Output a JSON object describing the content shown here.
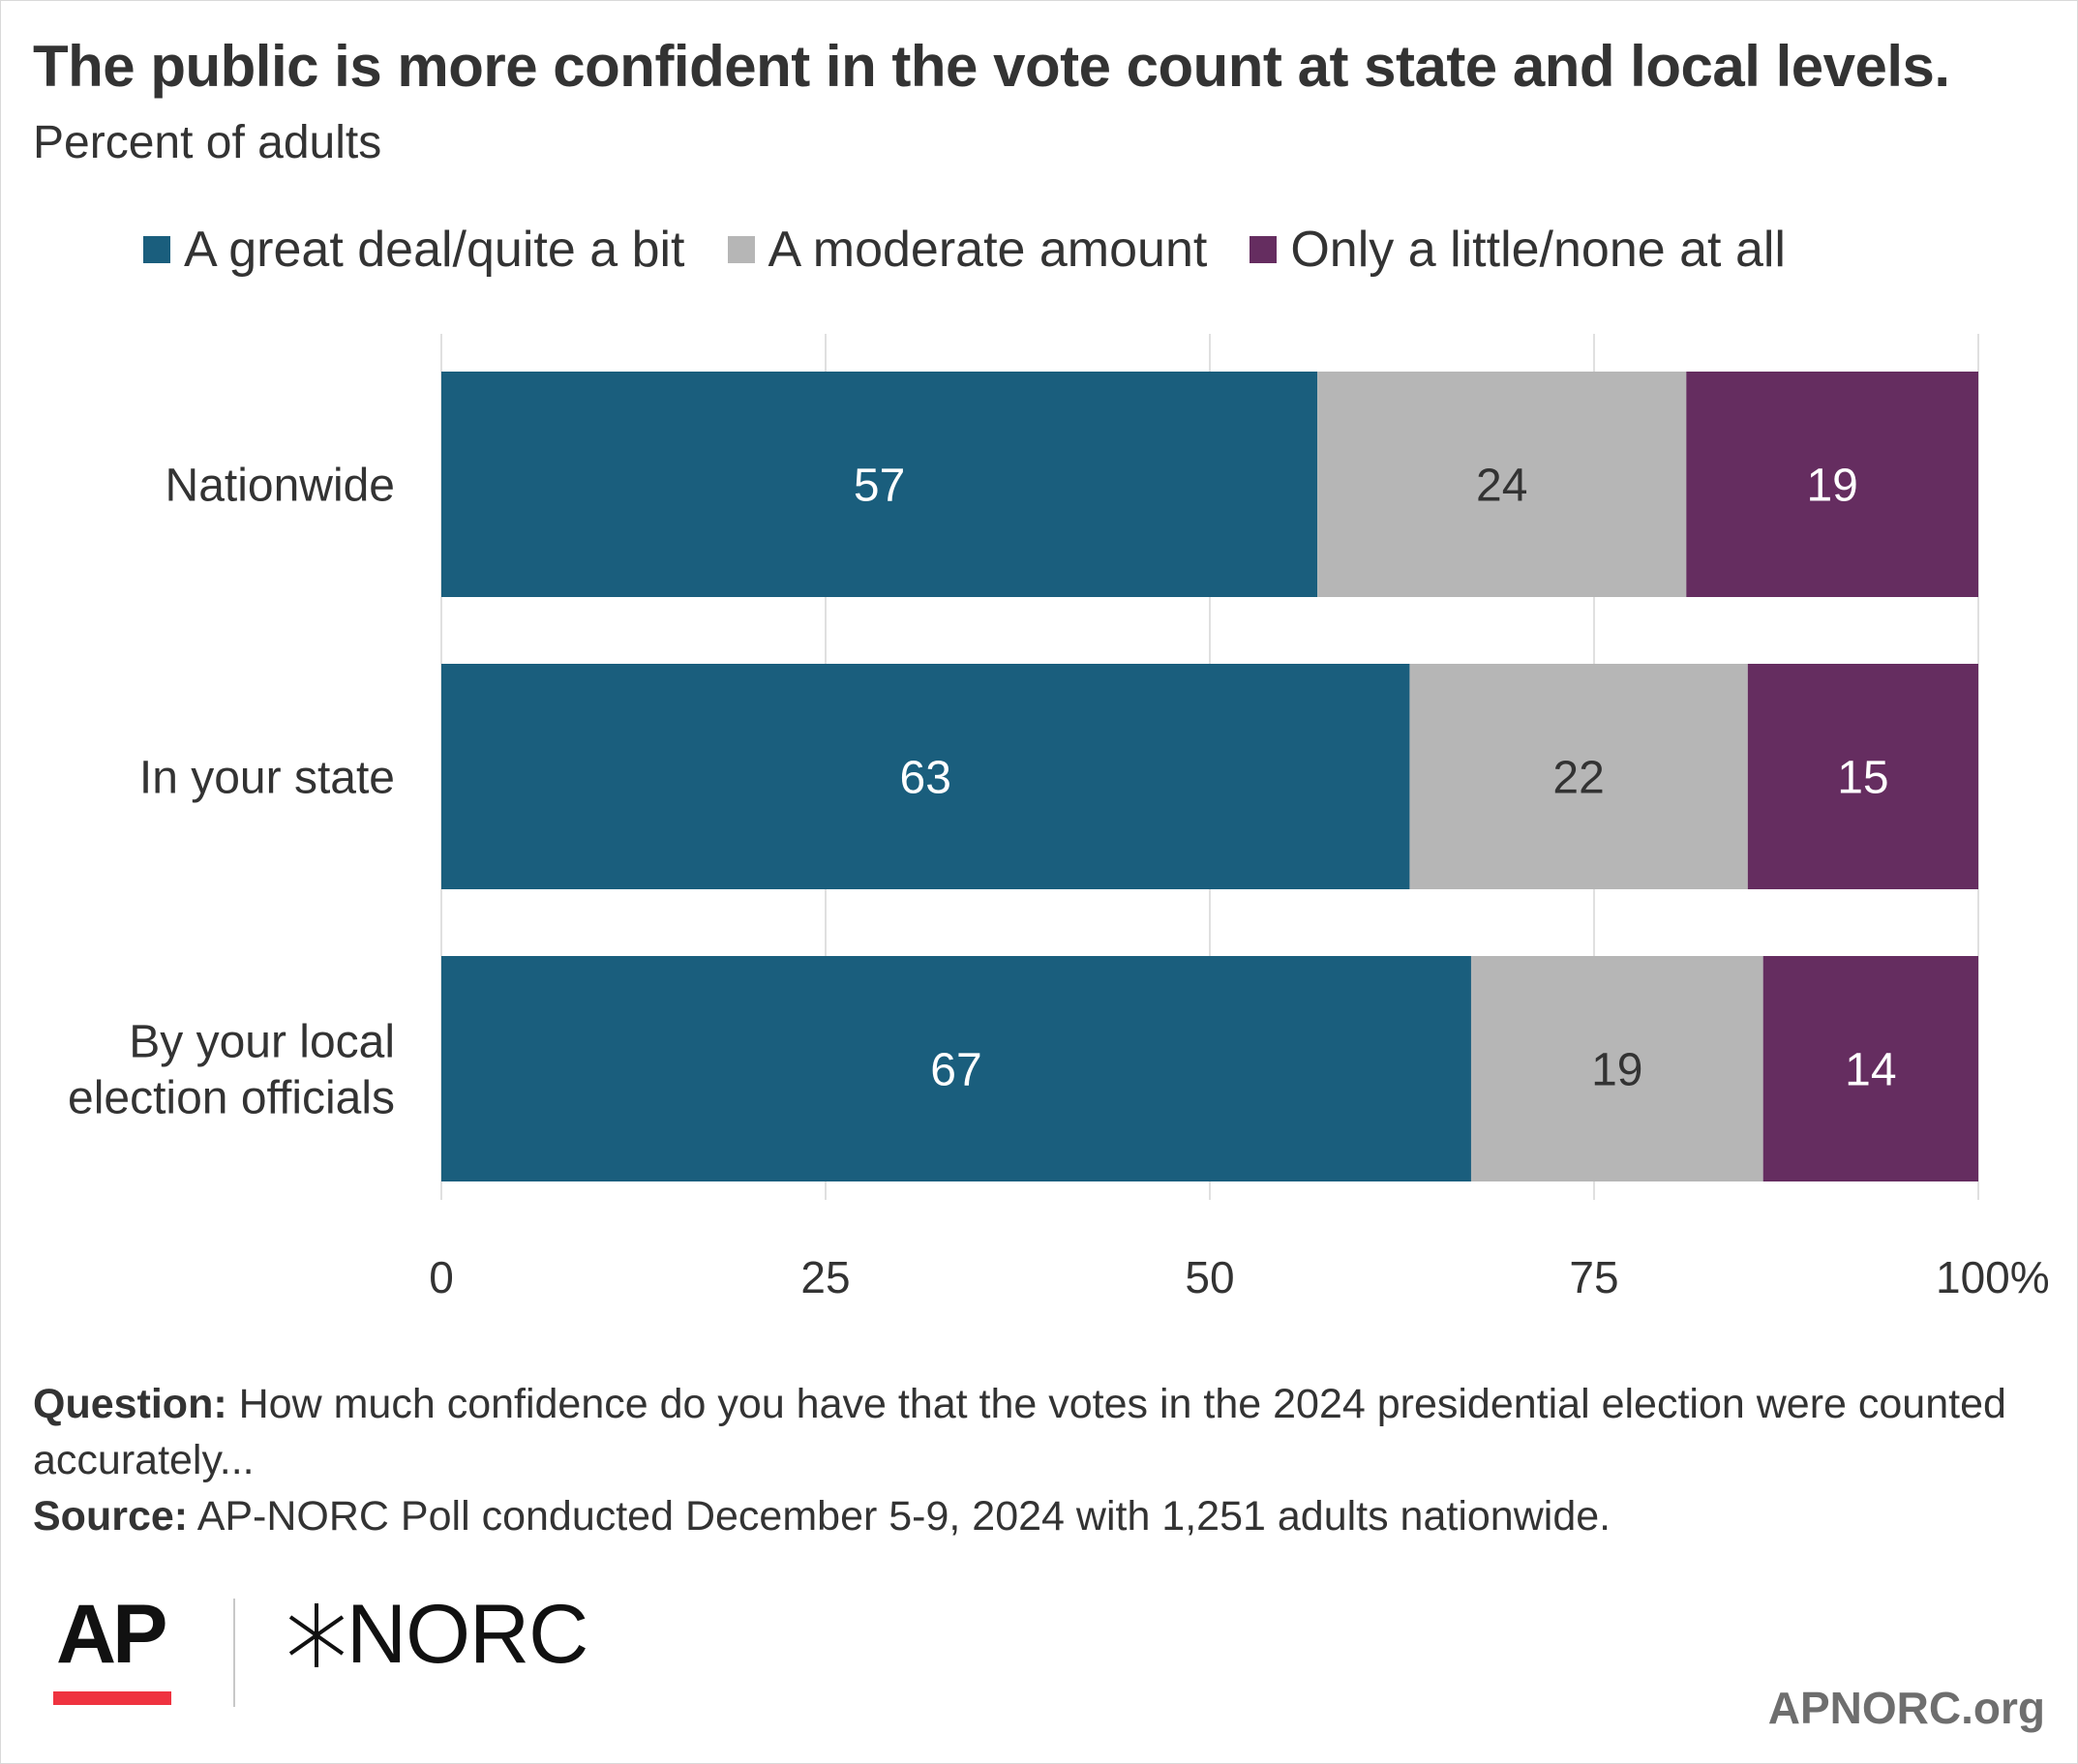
{
  "header": {
    "title": "The public is more confident in the vote count at state and local levels.",
    "subtitle": "Percent of adults"
  },
  "legend": [
    {
      "label": "A great deal/quite a bit",
      "color": "#1a5e7d"
    },
    {
      "label": "A moderate amount",
      "color": "#b6b6b6"
    },
    {
      "label": "Only a little/none at all",
      "color": "#652d60"
    }
  ],
  "chart_data": {
    "type": "bar",
    "orientation": "horizontal",
    "stacked": true,
    "categories": [
      "Nationwide",
      "In your state",
      "By your local election officials"
    ],
    "category_lines": [
      [
        "Nationwide"
      ],
      [
        "In your state"
      ],
      [
        "By your local",
        "election officials"
      ]
    ],
    "series": [
      {
        "name": "A great deal/quite a bit",
        "values": [
          57,
          63,
          67
        ],
        "color": "#1a5e7d",
        "label_color": "#ffffff"
      },
      {
        "name": "A moderate amount",
        "values": [
          24,
          22,
          19
        ],
        "color": "#b6b6b6",
        "label_color": "#333333"
      },
      {
        "name": "Only a little/none at all",
        "values": [
          19,
          15,
          14
        ],
        "color": "#652d60",
        "label_color": "#ffffff"
      }
    ],
    "xlim": [
      0,
      100
    ],
    "xticks": [
      0,
      25,
      50,
      75,
      100
    ],
    "xtick_labels": [
      "0",
      "25",
      "50",
      "75",
      "100%"
    ],
    "grid": true,
    "legend_position": "top"
  },
  "footer": {
    "question_label": "Question:",
    "question_text": "How much confidence do you have that the votes in the 2024 presidential election were counted accurately...",
    "source_label": "Source:",
    "source_text": "AP-NORC Poll conducted December 5-9, 2024 with 1,251 adults nationwide."
  },
  "logos": {
    "ap": "AP",
    "norc": "NORC",
    "ap_accent_color": "#ef3340"
  },
  "site_url": "APNORC.org"
}
